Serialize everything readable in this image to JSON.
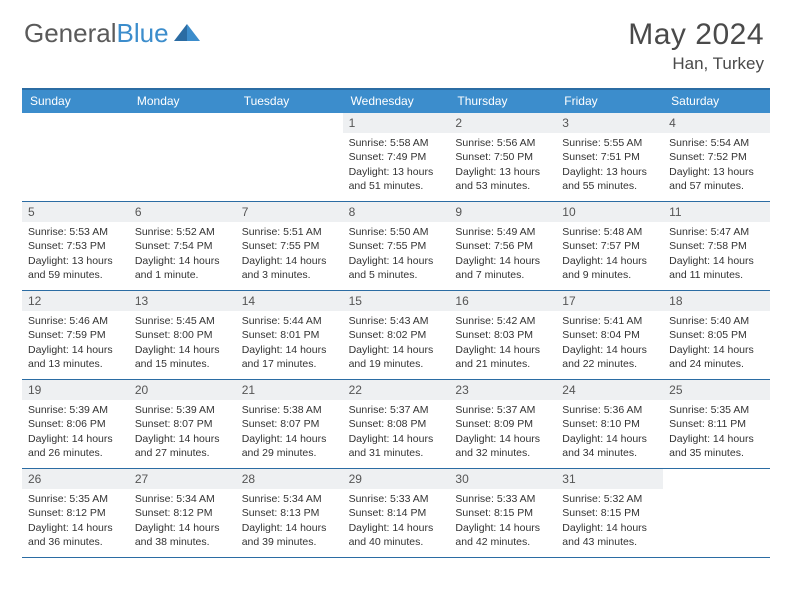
{
  "brand": {
    "part1": "General",
    "part2": "Blue"
  },
  "title": "May 2024",
  "location": "Han, Turkey",
  "colors": {
    "header_bar": "#3c8dcc",
    "rule": "#2b6ca3",
    "daynum_bg": "#eef0f2",
    "text": "#333333",
    "title_text": "#4a4a4a"
  },
  "dow": [
    "Sunday",
    "Monday",
    "Tuesday",
    "Wednesday",
    "Thursday",
    "Friday",
    "Saturday"
  ],
  "weeks": [
    [
      null,
      null,
      null,
      {
        "n": "1",
        "sr": "Sunrise: 5:58 AM",
        "ss": "Sunset: 7:49 PM",
        "d1": "Daylight: 13 hours",
        "d2": "and 51 minutes."
      },
      {
        "n": "2",
        "sr": "Sunrise: 5:56 AM",
        "ss": "Sunset: 7:50 PM",
        "d1": "Daylight: 13 hours",
        "d2": "and 53 minutes."
      },
      {
        "n": "3",
        "sr": "Sunrise: 5:55 AM",
        "ss": "Sunset: 7:51 PM",
        "d1": "Daylight: 13 hours",
        "d2": "and 55 minutes."
      },
      {
        "n": "4",
        "sr": "Sunrise: 5:54 AM",
        "ss": "Sunset: 7:52 PM",
        "d1": "Daylight: 13 hours",
        "d2": "and 57 minutes."
      }
    ],
    [
      {
        "n": "5",
        "sr": "Sunrise: 5:53 AM",
        "ss": "Sunset: 7:53 PM",
        "d1": "Daylight: 13 hours",
        "d2": "and 59 minutes."
      },
      {
        "n": "6",
        "sr": "Sunrise: 5:52 AM",
        "ss": "Sunset: 7:54 PM",
        "d1": "Daylight: 14 hours",
        "d2": "and 1 minute."
      },
      {
        "n": "7",
        "sr": "Sunrise: 5:51 AM",
        "ss": "Sunset: 7:55 PM",
        "d1": "Daylight: 14 hours",
        "d2": "and 3 minutes."
      },
      {
        "n": "8",
        "sr": "Sunrise: 5:50 AM",
        "ss": "Sunset: 7:55 PM",
        "d1": "Daylight: 14 hours",
        "d2": "and 5 minutes."
      },
      {
        "n": "9",
        "sr": "Sunrise: 5:49 AM",
        "ss": "Sunset: 7:56 PM",
        "d1": "Daylight: 14 hours",
        "d2": "and 7 minutes."
      },
      {
        "n": "10",
        "sr": "Sunrise: 5:48 AM",
        "ss": "Sunset: 7:57 PM",
        "d1": "Daylight: 14 hours",
        "d2": "and 9 minutes."
      },
      {
        "n": "11",
        "sr": "Sunrise: 5:47 AM",
        "ss": "Sunset: 7:58 PM",
        "d1": "Daylight: 14 hours",
        "d2": "and 11 minutes."
      }
    ],
    [
      {
        "n": "12",
        "sr": "Sunrise: 5:46 AM",
        "ss": "Sunset: 7:59 PM",
        "d1": "Daylight: 14 hours",
        "d2": "and 13 minutes."
      },
      {
        "n": "13",
        "sr": "Sunrise: 5:45 AM",
        "ss": "Sunset: 8:00 PM",
        "d1": "Daylight: 14 hours",
        "d2": "and 15 minutes."
      },
      {
        "n": "14",
        "sr": "Sunrise: 5:44 AM",
        "ss": "Sunset: 8:01 PM",
        "d1": "Daylight: 14 hours",
        "d2": "and 17 minutes."
      },
      {
        "n": "15",
        "sr": "Sunrise: 5:43 AM",
        "ss": "Sunset: 8:02 PM",
        "d1": "Daylight: 14 hours",
        "d2": "and 19 minutes."
      },
      {
        "n": "16",
        "sr": "Sunrise: 5:42 AM",
        "ss": "Sunset: 8:03 PM",
        "d1": "Daylight: 14 hours",
        "d2": "and 21 minutes."
      },
      {
        "n": "17",
        "sr": "Sunrise: 5:41 AM",
        "ss": "Sunset: 8:04 PM",
        "d1": "Daylight: 14 hours",
        "d2": "and 22 minutes."
      },
      {
        "n": "18",
        "sr": "Sunrise: 5:40 AM",
        "ss": "Sunset: 8:05 PM",
        "d1": "Daylight: 14 hours",
        "d2": "and 24 minutes."
      }
    ],
    [
      {
        "n": "19",
        "sr": "Sunrise: 5:39 AM",
        "ss": "Sunset: 8:06 PM",
        "d1": "Daylight: 14 hours",
        "d2": "and 26 minutes."
      },
      {
        "n": "20",
        "sr": "Sunrise: 5:39 AM",
        "ss": "Sunset: 8:07 PM",
        "d1": "Daylight: 14 hours",
        "d2": "and 27 minutes."
      },
      {
        "n": "21",
        "sr": "Sunrise: 5:38 AM",
        "ss": "Sunset: 8:07 PM",
        "d1": "Daylight: 14 hours",
        "d2": "and 29 minutes."
      },
      {
        "n": "22",
        "sr": "Sunrise: 5:37 AM",
        "ss": "Sunset: 8:08 PM",
        "d1": "Daylight: 14 hours",
        "d2": "and 31 minutes."
      },
      {
        "n": "23",
        "sr": "Sunrise: 5:37 AM",
        "ss": "Sunset: 8:09 PM",
        "d1": "Daylight: 14 hours",
        "d2": "and 32 minutes."
      },
      {
        "n": "24",
        "sr": "Sunrise: 5:36 AM",
        "ss": "Sunset: 8:10 PM",
        "d1": "Daylight: 14 hours",
        "d2": "and 34 minutes."
      },
      {
        "n": "25",
        "sr": "Sunrise: 5:35 AM",
        "ss": "Sunset: 8:11 PM",
        "d1": "Daylight: 14 hours",
        "d2": "and 35 minutes."
      }
    ],
    [
      {
        "n": "26",
        "sr": "Sunrise: 5:35 AM",
        "ss": "Sunset: 8:12 PM",
        "d1": "Daylight: 14 hours",
        "d2": "and 36 minutes."
      },
      {
        "n": "27",
        "sr": "Sunrise: 5:34 AM",
        "ss": "Sunset: 8:12 PM",
        "d1": "Daylight: 14 hours",
        "d2": "and 38 minutes."
      },
      {
        "n": "28",
        "sr": "Sunrise: 5:34 AM",
        "ss": "Sunset: 8:13 PM",
        "d1": "Daylight: 14 hours",
        "d2": "and 39 minutes."
      },
      {
        "n": "29",
        "sr": "Sunrise: 5:33 AM",
        "ss": "Sunset: 8:14 PM",
        "d1": "Daylight: 14 hours",
        "d2": "and 40 minutes."
      },
      {
        "n": "30",
        "sr": "Sunrise: 5:33 AM",
        "ss": "Sunset: 8:15 PM",
        "d1": "Daylight: 14 hours",
        "d2": "and 42 minutes."
      },
      {
        "n": "31",
        "sr": "Sunrise: 5:32 AM",
        "ss": "Sunset: 8:15 PM",
        "d1": "Daylight: 14 hours",
        "d2": "and 43 minutes."
      },
      null
    ]
  ]
}
